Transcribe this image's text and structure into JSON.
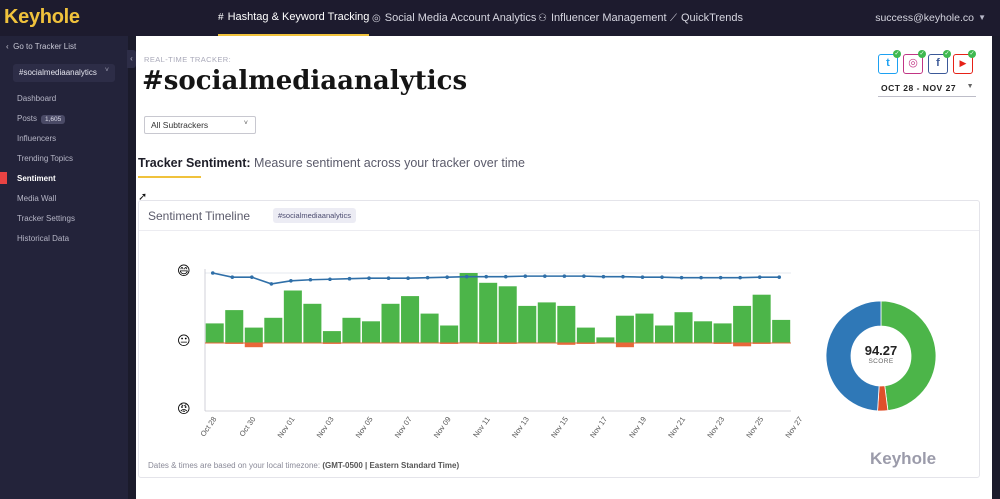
{
  "app": {
    "logo": "Keyhole"
  },
  "top_nav": [
    {
      "icon": "#",
      "label": "Hashtag & Keyword Tracking",
      "active": true
    },
    {
      "icon": "◎",
      "label": "Social Media Account Analytics",
      "active": false
    },
    {
      "icon": "⚇",
      "label": "Influencer Management",
      "active": false
    },
    {
      "icon": "⟋",
      "label": "QuickTrends",
      "active": false
    }
  ],
  "user": {
    "email": "success@keyhole.co"
  },
  "sidebar": {
    "back_label": "Go to Tracker List",
    "tracker": "#socialmediaanalytics",
    "items": [
      {
        "label": "Dashboard"
      },
      {
        "label": "Posts",
        "badge": "1,605"
      },
      {
        "label": "Influencers"
      },
      {
        "label": "Trending Topics"
      },
      {
        "label": "Sentiment",
        "active": true
      },
      {
        "label": "Media Wall"
      },
      {
        "label": "Tracker Settings"
      },
      {
        "label": "Historical Data"
      }
    ]
  },
  "header": {
    "realtime_label": "REAL-TIME TRACKER:",
    "hashtag": "#socialmediaanalytics",
    "date_range": "OCT 28 - NOV 27",
    "social_icons": [
      {
        "name": "twitter",
        "glyph": "t",
        "color": "#1da1f2"
      },
      {
        "name": "instagram",
        "glyph": "◎",
        "color": "#c13584"
      },
      {
        "name": "facebook",
        "glyph": "f",
        "color": "#3b5998"
      },
      {
        "name": "youtube",
        "glyph": "▶",
        "color": "#e62117"
      }
    ]
  },
  "filters": {
    "subtrackers": "All Subtrackers"
  },
  "section": {
    "title": "Tracker Sentiment:",
    "subtitle": "Measure sentiment across your tracker over time"
  },
  "card": {
    "title": "Sentiment Timeline",
    "tag": "#socialmediaanalytics",
    "footnote_prefix": "Dates & times are based on your local timezone:",
    "footnote_tz": "(GMT-0500 | Eastern Standard Time)",
    "watermark": "Keyhole",
    "score_value": "94.27",
    "score_label": "SCORE"
  },
  "chart_data": {
    "type": "bar",
    "x_tick_labels": [
      "Oct 28",
      "Oct 30",
      "Nov 01",
      "Nov 03",
      "Nov 05",
      "Nov 07",
      "Nov 09",
      "Nov 11",
      "Nov 13",
      "Nov 15",
      "Nov 17",
      "Nov 19",
      "Nov 21",
      "Nov 23",
      "Nov 25",
      "Nov 27"
    ],
    "positive": [
      0.28,
      0.47,
      0.22,
      0.36,
      0.75,
      0.56,
      0.17,
      0.36,
      0.31,
      0.56,
      0.67,
      0.42,
      0.25,
      1.0,
      0.86,
      0.81,
      0.53,
      0.58,
      0.53,
      0.22,
      0.08,
      0.39,
      0.42,
      0.25,
      0.44,
      0.31,
      0.28,
      0.53,
      0.69,
      0.33
    ],
    "negative": [
      0.0,
      0.03,
      0.14,
      0.0,
      0.0,
      0.0,
      0.03,
      0.0,
      0.0,
      0.0,
      0.0,
      0.0,
      0.03,
      0.0,
      0.03,
      0.03,
      0.0,
      0.0,
      0.06,
      0.03,
      0.0,
      0.14,
      0.0,
      0.0,
      0.0,
      0.0,
      0.03,
      0.11,
      0.03,
      0.0
    ],
    "score_line": [
      1.0,
      0.92,
      0.92,
      0.79,
      0.85,
      0.87,
      0.88,
      0.89,
      0.9,
      0.9,
      0.9,
      0.91,
      0.92,
      0.93,
      0.93,
      0.93,
      0.94,
      0.94,
      0.94,
      0.94,
      0.93,
      0.93,
      0.92,
      0.92,
      0.91,
      0.91,
      0.91,
      0.91,
      0.92,
      0.92
    ],
    "donut": [
      {
        "label": "positive",
        "value": 0.48,
        "color": "#4cb549"
      },
      {
        "label": "negative",
        "value": 0.03,
        "color": "#e0502a"
      },
      {
        "label": "neutral",
        "value": 0.49,
        "color": "#2f78b7"
      }
    ],
    "colors": {
      "positive": "#4cb549",
      "negative": "#e8673a",
      "line": "#2f6fa8"
    }
  }
}
